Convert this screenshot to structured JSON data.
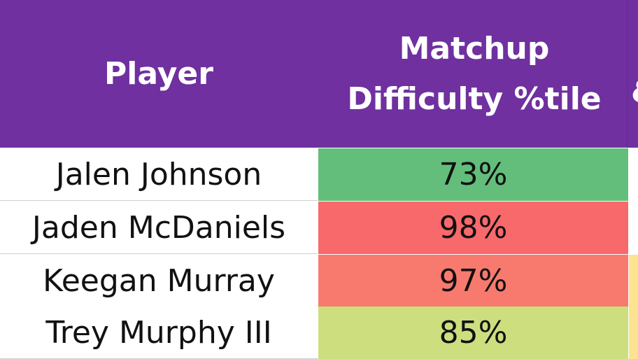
{
  "headers": {
    "player": "Player",
    "matchup": "Matchup Difficulty %tile",
    "partial_next": "&"
  },
  "rows": [
    {
      "player": "Jalen Johnson",
      "matchup": "73%",
      "color": "#63be7b"
    },
    {
      "player": "Jaden McDaniels",
      "matchup": "98%",
      "color": "#f8696b"
    },
    {
      "player": "Keegan Murray",
      "matchup": "97%",
      "color": "#f8796e"
    },
    {
      "player": "Trey Murphy III",
      "matchup": "85%",
      "color": "#cdde7f"
    }
  ],
  "colors": {
    "header_bg": "#7030a0",
    "header_text": "#ffffff",
    "next_column_tint": "#fbe390"
  }
}
